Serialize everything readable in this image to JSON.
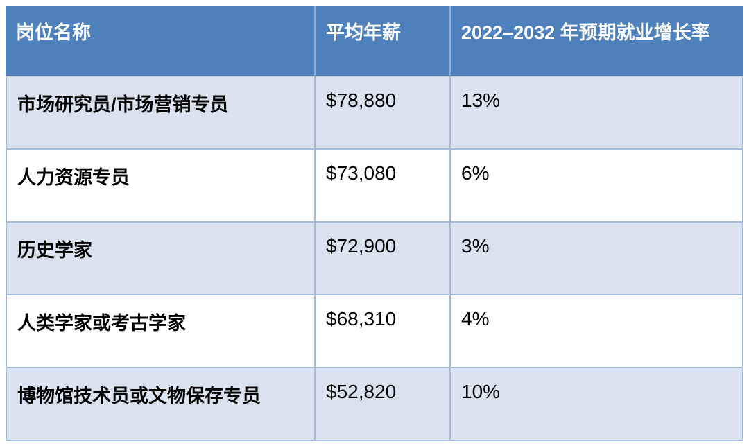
{
  "chart_data": {
    "type": "table",
    "columns": [
      "岗位名称",
      "平均年薪",
      "2022–2032 年预期就业增长率"
    ],
    "rows": [
      [
        "市场研究员/市场营销专员",
        "$78,880",
        "13%"
      ],
      [
        "人力资源专员",
        "$73,080",
        "6%"
      ],
      [
        "历史学家",
        "$72,900",
        "3%"
      ],
      [
        "人类学家或考古学家",
        "$68,310",
        "4%"
      ],
      [
        "博物馆技术员或文物保存专员",
        "$52,820",
        "10%"
      ]
    ],
    "salary_values_usd": [
      78880,
      73080,
      72900,
      68310,
      52820
    ],
    "growth_values_pct": [
      13,
      6,
      3,
      4,
      10
    ],
    "layout": {
      "grid": "on",
      "header_position": "top",
      "alternating_row_shading": true
    },
    "colors": {
      "header_bg": "#4e81bc",
      "header_text": "#ffffff",
      "row_shaded_bg": "#dae2ef",
      "row_plain_bg": "#ffffff",
      "body_text": "#000000",
      "grid_border": "#a4bad9"
    }
  }
}
